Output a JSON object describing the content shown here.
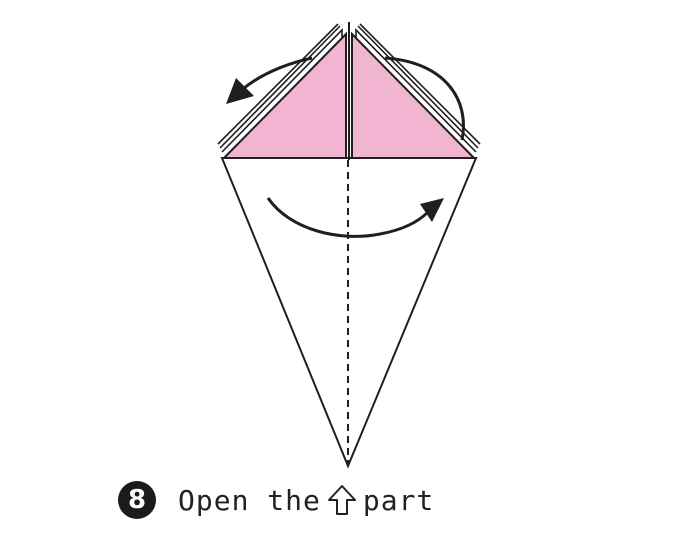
{
  "step": {
    "number": "8"
  },
  "caption": {
    "before": "Open the",
    "after": "part",
    "icon": "up-arrow-outline-icon"
  },
  "colors": {
    "paper_front": "#f2b5d1",
    "paper_back": "#ffffff",
    "line": "#1f1f1f"
  }
}
